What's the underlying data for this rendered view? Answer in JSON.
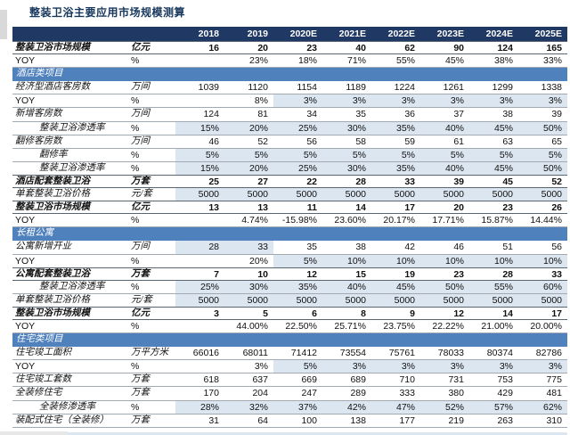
{
  "title": "整装卫浴主要应用市场规模测算",
  "colors": {
    "headerBg": "#1F3864",
    "sectionBg": "#4F81BD",
    "hlBg": "#DCE6F1",
    "titleColor": "#17375D"
  },
  "table": {
    "col_headers": [
      "",
      "",
      "2018",
      "2019",
      "2020E",
      "2021E",
      "2022E",
      "2023E",
      "2024E",
      "2025E"
    ],
    "rows": [
      {
        "label": "整装卫浴市场规模",
        "unit": "亿元",
        "bold": true,
        "values": [
          "16",
          "20",
          "23",
          "40",
          "62",
          "90",
          "124",
          "165"
        ]
      },
      {
        "label": "YOY",
        "unit": "%",
        "values": [
          "",
          "23%",
          "18%",
          "71%",
          "55%",
          "45%",
          "38%",
          "33%"
        ]
      },
      {
        "type": "section",
        "label": "酒店类项目"
      },
      {
        "label": "经济型酒店客房数",
        "unit": "万间",
        "values": [
          "1039",
          "1120",
          "1154",
          "1189",
          "1224",
          "1261",
          "1299",
          "1338"
        ]
      },
      {
        "label": "YOY",
        "unit": "%",
        "values": [
          "",
          "8%",
          "3%",
          "3%",
          "3%",
          "3%",
          "3%",
          "3%"
        ],
        "highlight": [
          2,
          3,
          4,
          5,
          6,
          7
        ]
      },
      {
        "label": "新增客房数",
        "unit": "万间",
        "values": [
          "124",
          "81",
          "34",
          "35",
          "36",
          "37",
          "38",
          "39"
        ]
      },
      {
        "label": "整装卫浴渗透率",
        "unit": "%",
        "indent": true,
        "values": [
          "15%",
          "20%",
          "25%",
          "30%",
          "35%",
          "40%",
          "45%",
          "50%"
        ],
        "highlight": [
          0,
          1,
          2,
          3,
          4,
          5,
          6,
          7
        ]
      },
      {
        "label": "翻修客房数",
        "unit": "万间",
        "values": [
          "46",
          "52",
          "56",
          "58",
          "59",
          "61",
          "63",
          "65"
        ]
      },
      {
        "label": "翻修率",
        "unit": "%",
        "indent": true,
        "values": [
          "5%",
          "5%",
          "5%",
          "5%",
          "5%",
          "5%",
          "5%",
          "5%"
        ],
        "highlight": [
          0,
          1,
          2,
          3,
          4,
          5,
          6,
          7
        ]
      },
      {
        "label": "整装卫浴渗透率",
        "unit": "%",
        "indent": true,
        "values": [
          "15%",
          "20%",
          "25%",
          "30%",
          "35%",
          "40%",
          "45%",
          "50%"
        ],
        "highlight": [
          0,
          1,
          2,
          3,
          4,
          5,
          6,
          7
        ]
      },
      {
        "label": "酒店配套整装卫浴",
        "unit": "万套",
        "bold": true,
        "values": [
          "25",
          "27",
          "22",
          "28",
          "33",
          "39",
          "45",
          "52"
        ]
      },
      {
        "label": "单套整装卫浴价格",
        "unit": "元/套",
        "values": [
          "5000",
          "5000",
          "5000",
          "5000",
          "5000",
          "5000",
          "5000",
          "5000"
        ],
        "highlight": [
          0,
          1,
          2,
          3,
          4,
          5,
          6,
          7
        ]
      },
      {
        "label": "整装卫浴市场规模",
        "unit": "亿元",
        "bold": true,
        "values": [
          "13",
          "13",
          "11",
          "14",
          "17",
          "20",
          "23",
          "26"
        ]
      },
      {
        "label": "YOY",
        "unit": "%",
        "values": [
          "",
          "4.74%",
          "-15.98%",
          "23.60%",
          "20.17%",
          "17.71%",
          "15.87%",
          "14.44%"
        ]
      },
      {
        "type": "section",
        "label": "长租公寓"
      },
      {
        "label": "公寓新增开业",
        "unit": "万间",
        "values": [
          "28",
          "33",
          "35",
          "38",
          "42",
          "46",
          "51",
          "56"
        ],
        "highlight": [
          0,
          1
        ]
      },
      {
        "label": "YOY",
        "unit": "%",
        "values": [
          "",
          "20%",
          "5%",
          "10%",
          "10%",
          "10%",
          "10%",
          "10%"
        ],
        "highlight": [
          2,
          3,
          4,
          5,
          6,
          7
        ]
      },
      {
        "label": "公寓配套整装卫浴",
        "unit": "万套",
        "bold": true,
        "values": [
          "7",
          "10",
          "12",
          "15",
          "19",
          "23",
          "28",
          "33"
        ]
      },
      {
        "label": "整装卫浴渗透率",
        "unit": "%",
        "indent": true,
        "values": [
          "25%",
          "30%",
          "35%",
          "40%",
          "45%",
          "50%",
          "55%",
          "60%"
        ],
        "highlight": [
          0,
          1,
          2,
          3,
          4,
          5,
          6,
          7
        ]
      },
      {
        "label": "单套整装卫浴价格",
        "unit": "元/套",
        "values": [
          "5000",
          "5000",
          "5000",
          "5000",
          "5000",
          "5000",
          "5000",
          "5000"
        ],
        "highlight": [
          0,
          1,
          2,
          3,
          4,
          5,
          6,
          7
        ]
      },
      {
        "label": "整装卫浴市场规模",
        "unit": "亿元",
        "bold": true,
        "values": [
          "3",
          "5",
          "6",
          "8",
          "9",
          "12",
          "14",
          "17"
        ]
      },
      {
        "label": "YOY",
        "unit": "%",
        "values": [
          "",
          "44.00%",
          "22.50%",
          "25.71%",
          "23.75%",
          "22.22%",
          "21.00%",
          "20.00%"
        ]
      },
      {
        "type": "section",
        "label": "住宅类项目"
      },
      {
        "label": "住宅竣工面积",
        "unit": "万平方米",
        "values": [
          "66016",
          "68011",
          "71412",
          "73554",
          "75761",
          "78033",
          "80374",
          "82786"
        ]
      },
      {
        "label": "YOY",
        "unit": "%",
        "values": [
          "",
          "3%",
          "5%",
          "3%",
          "3%",
          "3%",
          "3%",
          "3%"
        ],
        "highlight": [
          2,
          3,
          4,
          5,
          6,
          7
        ]
      },
      {
        "label": "住宅竣工套数",
        "unit": "万套",
        "values": [
          "618",
          "637",
          "669",
          "689",
          "710",
          "731",
          "753",
          "775"
        ]
      },
      {
        "label": "全装修住宅",
        "unit": "万套",
        "values": [
          "170",
          "204",
          "247",
          "289",
          "333",
          "380",
          "429",
          "481"
        ]
      },
      {
        "label": "全装修渗透率",
        "unit": "%",
        "indent": true,
        "values": [
          "28%",
          "32%",
          "37%",
          "42%",
          "47%",
          "52%",
          "57%",
          "62%"
        ],
        "highlight": [
          0,
          1,
          2,
          3,
          4,
          5,
          6,
          7
        ]
      },
      {
        "label": "装配式住宅（全装修）",
        "unit": "万套",
        "values": [
          "31",
          "64",
          "100",
          "138",
          "177",
          "219",
          "263",
          "310"
        ]
      }
    ]
  }
}
